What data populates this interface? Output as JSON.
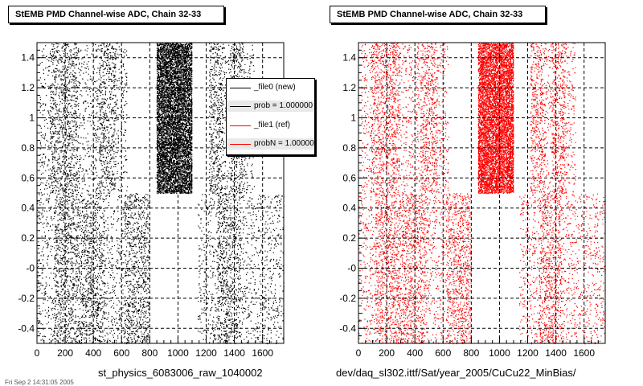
{
  "plots": [
    {
      "title": "StEMB PMD Channel-wise ADC, Chain 32-33",
      "xcaption": "st_physics_6083006_raw_1040002"
    },
    {
      "title": "StEMB PMD Channel-wise ADC, Chain 32-33",
      "xcaption": "dev/daq_sl302.ittf/Sat/year_2005/CuCu22_MinBias/"
    }
  ],
  "legend": {
    "entries": [
      "_file0 (new)",
      "prob = 1.000000",
      "_file1 (ref)",
      "probN = 1.000000"
    ],
    "entry_colors": [
      "#000000",
      "#000000",
      "#ff0000",
      "#ff0000"
    ]
  },
  "footnote": "Fri Sep 2 14:31:05 2005",
  "chart_data": [
    {
      "type": "scatter",
      "title": "StEMB PMD Channel-wise ADC, Chain 32-33",
      "xlabel": "st_physics_6083006_raw_1040002",
      "ylabel": "",
      "xlim": [
        0,
        1750
      ],
      "ylim": [
        -0.5,
        1.5
      ],
      "xticks": [
        0,
        200,
        400,
        600,
        800,
        1000,
        1200,
        1400,
        1600
      ],
      "yticks": [
        -0.4,
        -0.2,
        0,
        0.2,
        0.4,
        0.6,
        0.8,
        1,
        1.2,
        1.4
      ],
      "ytick_labels": [
        "-0.4",
        "-0.2",
        "-0",
        "0.2",
        "0.4",
        "0.6",
        "0.8",
        "1",
        "1.2",
        "1.4"
      ],
      "grid": true,
      "color": "#000000",
      "series": [
        {
          "name": "_file0 (new)",
          "upper_band_y": [
            0.5,
            1.5
          ],
          "upper_dense_x": [
            [
              848,
              1100
            ]
          ],
          "upper_medium_x": [
            [
              90,
              290
            ],
            [
              440,
              560
            ],
            [
              1220,
              1320
            ],
            [
              1370,
              1470
            ]
          ],
          "upper_sparse_x": [
            [
              20,
              90
            ],
            [
              290,
              440
            ],
            [
              560,
              640
            ],
            [
              1320,
              1370
            ],
            [
              1470,
              1540
            ]
          ],
          "lower_band_y": [
            -0.5,
            0.5
          ],
          "lower_medium_x": [
            [
              120,
              300
            ],
            [
              300,
              480
            ],
            [
              620,
              800
            ],
            [
              1280,
              1440
            ]
          ],
          "lower_sparse_x": [
            [
              0,
              120
            ],
            [
              480,
              620
            ],
            [
              1140,
              1280
            ],
            [
              1440,
              1750
            ]
          ]
        }
      ]
    },
    {
      "type": "scatter",
      "title": "StEMB PMD Channel-wise ADC, Chain 32-33",
      "xlabel": "dev/daq_sl302.ittf/Sat/year_2005/CuCu22_MinBias/",
      "ylabel": "",
      "xlim": [
        0,
        1750
      ],
      "ylim": [
        -0.5,
        1.5
      ],
      "xticks": [
        0,
        200,
        400,
        600,
        800,
        1000,
        1200,
        1400,
        1600
      ],
      "yticks": [
        -0.4,
        -0.2,
        0,
        0.2,
        0.4,
        0.6,
        0.8,
        1,
        1.2,
        1.4
      ],
      "ytick_labels": [
        "-0.4",
        "-0.2",
        "-0",
        "0.2",
        "0.4",
        "0.6",
        "0.8",
        "1",
        "1.2",
        "1.4"
      ],
      "grid": true,
      "color": "#ff0000",
      "series": [
        {
          "name": "_file1 (ref)",
          "upper_band_y": [
            0.5,
            1.5
          ],
          "upper_dense_x": [
            [
              848,
              1100
            ]
          ],
          "upper_medium_x": [
            [
              90,
              290
            ],
            [
              440,
              560
            ],
            [
              1220,
              1320
            ],
            [
              1370,
              1470
            ]
          ],
          "upper_sparse_x": [
            [
              20,
              90
            ],
            [
              290,
              440
            ],
            [
              560,
              640
            ],
            [
              1320,
              1370
            ],
            [
              1470,
              1540
            ]
          ],
          "lower_band_y": [
            -0.5,
            0.5
          ],
          "lower_medium_x": [
            [
              120,
              300
            ],
            [
              300,
              480
            ],
            [
              620,
              800
            ],
            [
              1280,
              1440
            ]
          ],
          "lower_sparse_x": [
            [
              0,
              120
            ],
            [
              480,
              620
            ],
            [
              1140,
              1280
            ],
            [
              1440,
              1750
            ]
          ]
        }
      ]
    }
  ]
}
